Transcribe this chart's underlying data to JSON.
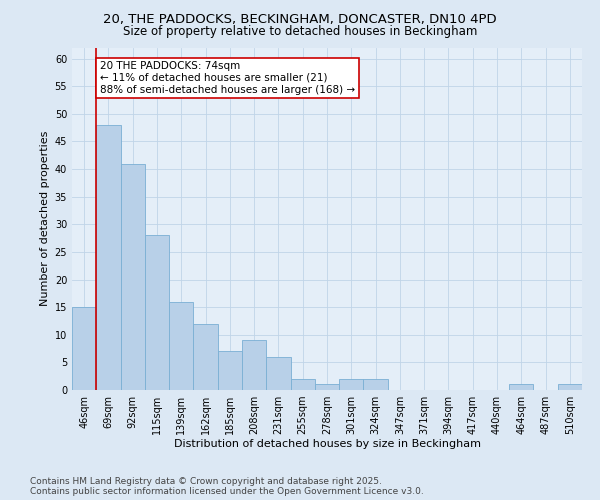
{
  "title_line1": "20, THE PADDOCKS, BECKINGHAM, DONCASTER, DN10 4PD",
  "title_line2": "Size of property relative to detached houses in Beckingham",
  "xlabel": "Distribution of detached houses by size in Beckingham",
  "ylabel": "Number of detached properties",
  "categories": [
    "46sqm",
    "69sqm",
    "92sqm",
    "115sqm",
    "139sqm",
    "162sqm",
    "185sqm",
    "208sqm",
    "231sqm",
    "255sqm",
    "278sqm",
    "301sqm",
    "324sqm",
    "347sqm",
    "371sqm",
    "394sqm",
    "417sqm",
    "440sqm",
    "464sqm",
    "487sqm",
    "510sqm"
  ],
  "values": [
    15,
    48,
    41,
    28,
    16,
    12,
    7,
    9,
    6,
    2,
    1,
    2,
    2,
    0,
    0,
    0,
    0,
    0,
    1,
    0,
    1
  ],
  "bar_color": "#b8d0e8",
  "bar_edge_color": "#7aafd4",
  "red_line_index": 1,
  "annotation_text": "20 THE PADDOCKS: 74sqm\n← 11% of detached houses are smaller (21)\n88% of semi-detached houses are larger (168) →",
  "annotation_box_color": "#ffffff",
  "annotation_box_edge": "#cc0000",
  "annotation_text_color": "#000000",
  "red_line_color": "#cc0000",
  "ylim": [
    0,
    62
  ],
  "yticks": [
    0,
    5,
    10,
    15,
    20,
    25,
    30,
    35,
    40,
    45,
    50,
    55,
    60
  ],
  "grid_color": "#c0d4e8",
  "bg_color": "#dce8f4",
  "plot_bg_color": "#e4eef8",
  "footer_text": "Contains HM Land Registry data © Crown copyright and database right 2025.\nContains public sector information licensed under the Open Government Licence v3.0.",
  "title_fontsize": 9.5,
  "subtitle_fontsize": 8.5,
  "axis_label_fontsize": 8,
  "tick_fontsize": 7,
  "annotation_fontsize": 7.5,
  "footer_fontsize": 6.5
}
